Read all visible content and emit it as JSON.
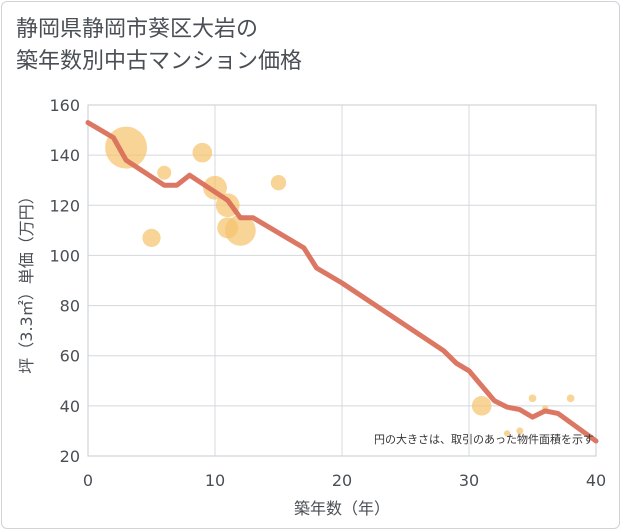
{
  "title_lines": [
    "静岡県静岡市葵区大岩の",
    "築年数別中古マンション価格"
  ],
  "chart_data": {
    "type": "scatter",
    "title": "静岡県静岡市葵区大岩の築年数別中古マンション価格",
    "xlabel": "築年数（年）",
    "ylabel": "坪（3.3㎡）単価（万円）",
    "xlim": [
      0,
      40
    ],
    "ylim": [
      20,
      160
    ],
    "xticks": [
      0,
      10,
      20,
      30,
      40
    ],
    "yticks": [
      20,
      40,
      60,
      80,
      100,
      120,
      140,
      160
    ],
    "grid": true,
    "bubble_color": "#f5c46e",
    "line_color": "#d9705a",
    "note": "円の大きさは、取引のあった物件面積を示す",
    "points": [
      {
        "x": 3,
        "y": 143,
        "size": 3.0
      },
      {
        "x": 5,
        "y": 107,
        "size": 1.3
      },
      {
        "x": 6,
        "y": 133,
        "size": 1.0
      },
      {
        "x": 9,
        "y": 141,
        "size": 1.4
      },
      {
        "x": 10,
        "y": 127,
        "size": 1.7
      },
      {
        "x": 11,
        "y": 120,
        "size": 1.7
      },
      {
        "x": 11,
        "y": 111,
        "size": 1.5
      },
      {
        "x": 12,
        "y": 110,
        "size": 2.2
      },
      {
        "x": 15,
        "y": 129,
        "size": 1.1
      },
      {
        "x": 31,
        "y": 40,
        "size": 1.4
      },
      {
        "x": 33,
        "y": 29,
        "size": 0.45
      },
      {
        "x": 34,
        "y": 30,
        "size": 0.5
      },
      {
        "x": 35,
        "y": 43,
        "size": 0.55
      },
      {
        "x": 36,
        "y": 39,
        "size": 0.45
      },
      {
        "x": 38,
        "y": 43,
        "size": 0.55
      }
    ],
    "trend": [
      {
        "x": 0,
        "y": 153
      },
      {
        "x": 2,
        "y": 147
      },
      {
        "x": 3,
        "y": 138
      },
      {
        "x": 6,
        "y": 128
      },
      {
        "x": 7,
        "y": 128
      },
      {
        "x": 8,
        "y": 132
      },
      {
        "x": 11,
        "y": 122
      },
      {
        "x": 12,
        "y": 115
      },
      {
        "x": 13,
        "y": 115
      },
      {
        "x": 17,
        "y": 103
      },
      {
        "x": 18,
        "y": 95
      },
      {
        "x": 20,
        "y": 89
      },
      {
        "x": 28,
        "y": 62
      },
      {
        "x": 29,
        "y": 57
      },
      {
        "x": 30,
        "y": 54
      },
      {
        "x": 31,
        "y": 48
      },
      {
        "x": 32,
        "y": 42
      },
      {
        "x": 33,
        "y": 39.5
      },
      {
        "x": 34,
        "y": 38.5
      },
      {
        "x": 35,
        "y": 35.5
      },
      {
        "x": 36,
        "y": 38
      },
      {
        "x": 37,
        "y": 37
      },
      {
        "x": 40,
        "y": 26
      }
    ]
  }
}
